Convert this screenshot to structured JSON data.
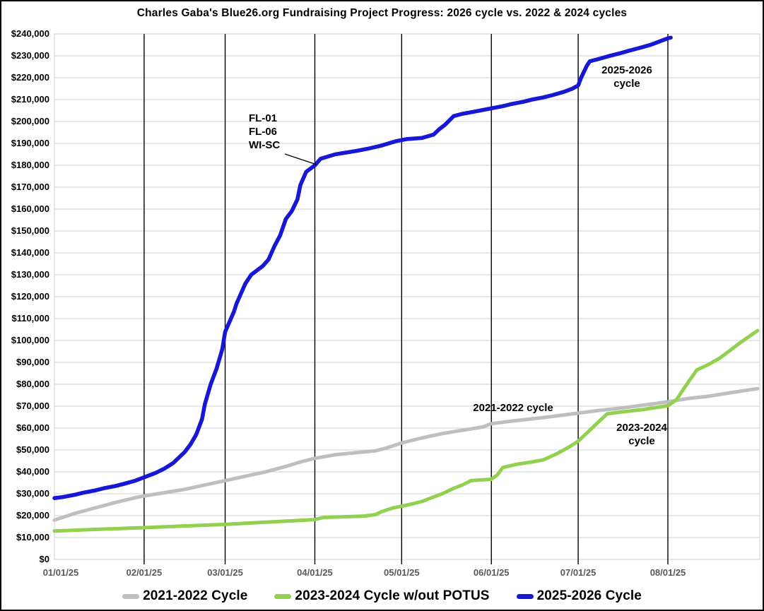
{
  "chart_data": {
    "type": "line",
    "title": "Charles Gaba's Blue26.org Fundraising Project Progress: 2026 cycle vs. 2022 & 2024 cycles",
    "x_axis": {
      "ticks": [
        "01/01/25",
        "02/01/25",
        "03/01/25",
        "04/01/25",
        "05/01/25",
        "06/01/25",
        "07/01/25",
        "08/01/25"
      ],
      "start": "01/01/25",
      "end": "09/02/25",
      "grid": "vertical-black-monthly"
    },
    "y_axis": {
      "min": 0,
      "max": 240000,
      "step": 10000,
      "prefix": "$",
      "grid": "horizontal-light-gray"
    },
    "series": [
      {
        "name": "2021-2022 Cycle",
        "color": "#bfbfbf",
        "points": [
          [
            "01/01",
            18000
          ],
          [
            "01/08",
            21000
          ],
          [
            "01/15",
            23500
          ],
          [
            "01/22",
            26000
          ],
          [
            "01/29",
            28200
          ],
          [
            "02/01",
            29000
          ],
          [
            "02/08",
            30500
          ],
          [
            "02/15",
            32000
          ],
          [
            "02/22",
            34000
          ],
          [
            "03/01",
            36000
          ],
          [
            "03/08",
            38000
          ],
          [
            "03/15",
            40000
          ],
          [
            "03/22",
            42500
          ],
          [
            "03/27",
            44500
          ],
          [
            "04/01",
            46200
          ],
          [
            "04/08",
            47800
          ],
          [
            "04/15",
            48700
          ],
          [
            "04/22",
            49600
          ],
          [
            "04/26",
            51000
          ],
          [
            "05/01",
            53200
          ],
          [
            "05/08",
            55500
          ],
          [
            "05/15",
            57500
          ],
          [
            "05/22",
            59000
          ],
          [
            "05/29",
            60500
          ],
          [
            "06/01",
            62000
          ],
          [
            "06/08",
            63200
          ],
          [
            "06/15",
            64200
          ],
          [
            "06/22",
            65300
          ],
          [
            "07/01",
            66800
          ],
          [
            "07/08",
            68000
          ],
          [
            "07/15",
            69000
          ],
          [
            "07/22",
            70200
          ],
          [
            "08/01",
            72000
          ],
          [
            "08/08",
            73500
          ],
          [
            "08/15",
            74500
          ],
          [
            "08/22",
            76000
          ],
          [
            "09/01",
            78000
          ]
        ]
      },
      {
        "name": "2023-2024 Cycle w/out POTUS",
        "color": "#92d050",
        "points": [
          [
            "01/01",
            13000
          ],
          [
            "01/15",
            13700
          ],
          [
            "02/01",
            14500
          ],
          [
            "02/15",
            15300
          ],
          [
            "03/01",
            16000
          ],
          [
            "03/15",
            17000
          ],
          [
            "04/01",
            18200
          ],
          [
            "04/04",
            19200
          ],
          [
            "04/12",
            19500
          ],
          [
            "04/18",
            19800
          ],
          [
            "04/22",
            20500
          ],
          [
            "04/24",
            21800
          ],
          [
            "04/28",
            23500
          ],
          [
            "05/01",
            24300
          ],
          [
            "05/05",
            25500
          ],
          [
            "05/08",
            26500
          ],
          [
            "05/12",
            28500
          ],
          [
            "05/15",
            30000
          ],
          [
            "05/19",
            32500
          ],
          [
            "05/22",
            34000
          ],
          [
            "05/25",
            36000
          ],
          [
            "06/01",
            36600
          ],
          [
            "06/03",
            38500
          ],
          [
            "06/05",
            42000
          ],
          [
            "06/10",
            43500
          ],
          [
            "06/15",
            44500
          ],
          [
            "06/19",
            45500
          ],
          [
            "06/24",
            48500
          ],
          [
            "06/28",
            51500
          ],
          [
            "07/01",
            54000
          ],
          [
            "07/05",
            59000
          ],
          [
            "07/09",
            64000
          ],
          [
            "07/11",
            66500
          ],
          [
            "07/15",
            67200
          ],
          [
            "07/19",
            67800
          ],
          [
            "07/23",
            68400
          ],
          [
            "07/27",
            69200
          ],
          [
            "08/01",
            70200
          ],
          [
            "08/04",
            73000
          ],
          [
            "08/07",
            79000
          ],
          [
            "08/11",
            86500
          ],
          [
            "08/15",
            89000
          ],
          [
            "08/19",
            92000
          ],
          [
            "08/22",
            95000
          ],
          [
            "08/26",
            99000
          ],
          [
            "09/01",
            104500
          ]
        ]
      },
      {
        "name": "2025-2026 Cycle",
        "color": "#1717d6",
        "points": [
          [
            "01/01",
            28000
          ],
          [
            "01/04",
            28500
          ],
          [
            "01/08",
            29500
          ],
          [
            "01/11",
            30500
          ],
          [
            "01/15",
            31500
          ],
          [
            "01/18",
            32500
          ],
          [
            "01/22",
            33500
          ],
          [
            "01/25",
            34500
          ],
          [
            "01/29",
            36000
          ],
          [
            "02/01",
            37500
          ],
          [
            "02/05",
            39500
          ],
          [
            "02/08",
            41500
          ],
          [
            "02/11",
            44000
          ],
          [
            "02/15",
            49000
          ],
          [
            "02/17",
            52500
          ],
          [
            "02/19",
            57000
          ],
          [
            "02/21",
            64000
          ],
          [
            "02/22",
            71000
          ],
          [
            "02/24",
            80000
          ],
          [
            "02/26",
            87000
          ],
          [
            "02/28",
            96000
          ],
          [
            "03/01",
            104000
          ],
          [
            "03/04",
            113000
          ],
          [
            "03/05",
            117000
          ],
          [
            "03/08",
            126000
          ],
          [
            "03/10",
            130000
          ],
          [
            "03/14",
            134000
          ],
          [
            "03/16",
            137000
          ],
          [
            "03/18",
            143000
          ],
          [
            "03/20",
            148000
          ],
          [
            "03/22",
            155500
          ],
          [
            "03/24",
            159000
          ],
          [
            "03/26",
            164500
          ],
          [
            "03/27",
            171000
          ],
          [
            "03/29",
            177000
          ],
          [
            "04/01",
            180000
          ],
          [
            "04/03",
            183000
          ],
          [
            "04/08",
            185000
          ],
          [
            "04/15",
            186500
          ],
          [
            "04/19",
            187500
          ],
          [
            "04/24",
            189000
          ],
          [
            "04/29",
            191000
          ],
          [
            "05/03",
            192000
          ],
          [
            "05/08",
            192500
          ],
          [
            "05/12",
            194000
          ],
          [
            "05/14",
            196500
          ],
          [
            "05/16",
            198500
          ],
          [
            "05/19",
            202500
          ],
          [
            "05/22",
            203500
          ],
          [
            "05/26",
            204500
          ],
          [
            "06/01",
            206000
          ],
          [
            "06/05",
            207000
          ],
          [
            "06/08",
            208000
          ],
          [
            "06/12",
            209000
          ],
          [
            "06/15",
            210000
          ],
          [
            "06/19",
            211000
          ],
          [
            "06/22",
            212000
          ],
          [
            "06/26",
            213500
          ],
          [
            "06/29",
            215000
          ],
          [
            "07/01",
            216500
          ],
          [
            "07/02",
            220000
          ],
          [
            "07/04",
            225500
          ],
          [
            "07/05",
            227500
          ],
          [
            "07/08",
            228500
          ],
          [
            "07/12",
            230000
          ],
          [
            "07/15",
            231000
          ],
          [
            "07/19",
            232500
          ],
          [
            "07/22",
            233500
          ],
          [
            "07/26",
            235000
          ],
          [
            "07/29",
            236500
          ],
          [
            "08/01",
            238000
          ],
          [
            "08/02",
            238300
          ]
        ]
      }
    ],
    "annotations": [
      {
        "id": "callout-fl",
        "lines": [
          "FL-01",
          "FL-06",
          "WI-SC"
        ],
        "x": 350,
        "y": 156,
        "align": "left",
        "leader": [
          401,
          216,
          446,
          231
        ]
      },
      {
        "id": "label-2025-2026-cycle",
        "lines": [
          "2025-2026",
          "cycle"
        ],
        "x": 885,
        "y": 88,
        "align": "center"
      },
      {
        "id": "label-2021-2022-cycle",
        "lines": [
          "2021-2022 cycle"
        ],
        "x": 724,
        "y": 566,
        "align": "center"
      },
      {
        "id": "label-2023-2024-cycle",
        "lines": [
          "2023-2024",
          "cycle"
        ],
        "x": 906,
        "y": 594,
        "align": "center"
      }
    ],
    "legend": {
      "position": "bottom",
      "items": [
        {
          "label": "2021-2022 Cycle",
          "color": "#bfbfbf"
        },
        {
          "label": "2023-2024 Cycle w/out POTUS",
          "color": "#92d050"
        },
        {
          "label": "2025-2026 Cycle",
          "color": "#1717d6"
        }
      ]
    },
    "colors": {
      "grid_horizontal": "#d9d9d9",
      "grid_vertical": "#000000",
      "plot_border": "#d9d9d9",
      "x_tick_text": "#595959",
      "y_tick_text": "#000000"
    }
  }
}
